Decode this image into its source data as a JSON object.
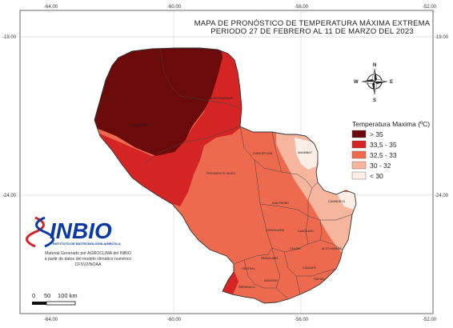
{
  "title": {
    "line1": "MAPA DE PRONÓSTICO DE TEMPERATURA MÁXIMA EXTREMA",
    "line2": "PERIODO 27 DE FEBRERO AL 11 DE MARZO DEL 2023"
  },
  "axes": {
    "top_ticks": [
      "-64.00",
      "-60.00",
      "-56.00",
      "-52.00"
    ],
    "bottom_ticks": [
      "-64.00",
      "-60.00",
      "-56.00",
      "-52.00"
    ],
    "left_ticks": [
      "-19.00",
      "-24.00"
    ],
    "right_ticks": [
      "-19.00",
      "-24.00"
    ]
  },
  "compass": {
    "n": "N",
    "s": "S",
    "e": "E",
    "w": "W"
  },
  "legend": {
    "title": "Temperatura Maxima (ºC)",
    "items": [
      {
        "label": "> 35",
        "color": "#6b0a0a"
      },
      {
        "label": "33,5 - 35",
        "color": "#d42424"
      },
      {
        "label": "32,5 - 33",
        "color": "#ee6a4e"
      },
      {
        "label": "30 - 32",
        "color": "#f6b59d"
      },
      {
        "label": "< 30",
        "color": "#fbeee6"
      }
    ]
  },
  "departments": [
    "ALTO PARAGUAY",
    "BOQUERÓN",
    "PRESIDENTE HAYES",
    "CONCEPCIÓN",
    "AMAMBAY",
    "SAN PEDRO",
    "CANINDEYÚ",
    "CORDILLERA",
    "CAAGUAZÚ",
    "ALTO PARANÁ",
    "PARAGUARÍ",
    "GUAIRÁ",
    "CAAZAPÁ",
    "ITAPÚA",
    "MISIONES",
    "ÑEEMBUCÚ",
    "CENTRAL"
  ],
  "logo": {
    "name": "INBIO",
    "subtitle": "INSTITUTO DE BIOTECNOLOGÍA AGRÍCOLA"
  },
  "credits": [
    "Material Generado por AGROCLIMA del INBIO",
    "a partir de datos del modelo climático numérico",
    "CFSV2/NOAA"
  ],
  "scale": {
    "labels": [
      "0",
      "50",
      "100 km"
    ]
  }
}
